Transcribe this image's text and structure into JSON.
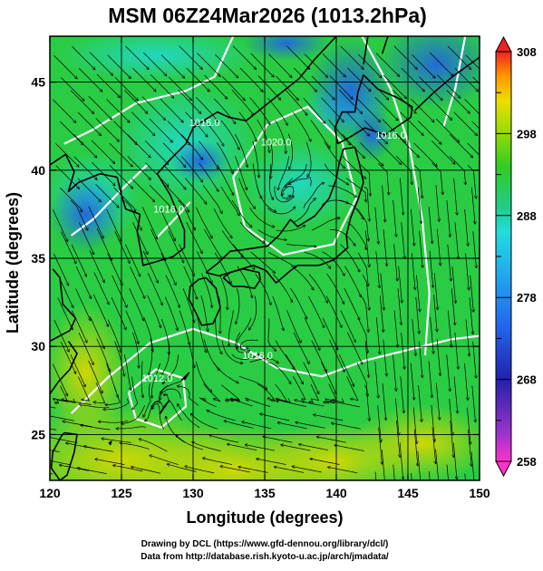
{
  "title": "MSM 06Z24Mar2026 (1013.2hPa)",
  "x_axis": {
    "label": "Longitude (degrees)",
    "range": [
      120,
      150
    ],
    "ticks": [
      120,
      125,
      130,
      135,
      140,
      145,
      150
    ]
  },
  "y_axis": {
    "label": "Latitude (degrees)",
    "range": [
      22.4,
      47.6
    ],
    "ticks": [
      25,
      30,
      35,
      40,
      45
    ]
  },
  "grid_lines": {
    "lon": [
      125,
      130,
      135,
      140,
      145
    ],
    "lat": [
      25,
      30,
      35,
      40,
      45
    ]
  },
  "colorbar": {
    "range": [
      258,
      308
    ],
    "tick_labels": [
      "308",
      "298",
      "288",
      "278",
      "268",
      "258"
    ],
    "tick_values": [
      308,
      298,
      288,
      278,
      268,
      258
    ]
  },
  "contour_labels": [
    {
      "text": "1016.0",
      "lon": 130.8,
      "lat": 42.5
    },
    {
      "text": "1020.0",
      "lon": 135.8,
      "lat": 41.4
    },
    {
      "text": "1016.0",
      "lon": 143.8,
      "lat": 41.8
    },
    {
      "text": "1016.0",
      "lon": 128.3,
      "lat": 37.6
    },
    {
      "text": "1016.0",
      "lon": 134.5,
      "lat": 29.3
    },
    {
      "text": "1012.0",
      "lon": 127.5,
      "lat": 28.0
    }
  ],
  "credits": {
    "line1": "Drawing by DCL (https://www.gfd-dennou.org/library/dcl/)",
    "line2": "Data from http://database.rish.kyoto-u.ac.jp/arch/jmadata/"
  },
  "colors": {
    "warm": "#d8d800",
    "mild": "#22cc22",
    "cool": "#22d8c8",
    "cold": "#2266e0",
    "contour": "#ffffff",
    "coast": "#000000"
  }
}
